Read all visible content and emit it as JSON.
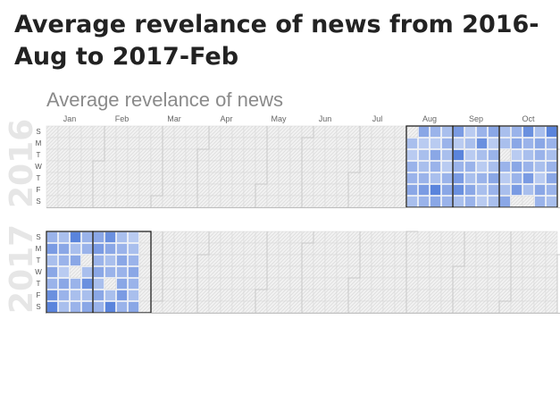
{
  "page": {
    "title": "Average revelance of news from 2016-Aug to 2017-Feb"
  },
  "colors": {
    "empty_cell_fill": "#f2f2f2",
    "empty_cell_hatch": "#dcdcdc",
    "cell_stroke": "#d8d8d8",
    "month_outline_inactive": "#c8c8c8",
    "month_outline_active": "#111111",
    "scale_light": "#e9eefb",
    "scale_dark": "#4a78d8"
  },
  "chart_data": {
    "type": "heatmap",
    "subtype": "calendar",
    "title": "Average revelance of news",
    "months_shown": [
      "Jan",
      "Feb",
      "Mar",
      "Apr",
      "May",
      "Jun",
      "Jul",
      "Aug",
      "Sep",
      "Oct"
    ],
    "day_of_week_labels": [
      "S",
      "M",
      "T",
      "W",
      "T",
      "F",
      "S"
    ],
    "years": [
      {
        "year": "2016",
        "active_months": [
          "Aug",
          "Sep",
          "Oct"
        ],
        "weeks": [
          {
            "week": 31,
            "values": [
              null,
              0.4,
              0.3,
              0.5,
              0.5,
              0.6,
              0.4
            ]
          },
          {
            "week": 32,
            "values": [
              0.6,
              0.3,
              0.4,
              0.4,
              0.5,
              0.7,
              0.5
            ]
          },
          {
            "week": 33,
            "values": [
              0.5,
              0.3,
              0.6,
              0.5,
              0.4,
              0.9,
              0.6
            ]
          },
          {
            "week": 34,
            "values": [
              0.4,
              0.5,
              0.4,
              0.3,
              0.5,
              0.6,
              0.5
            ]
          },
          {
            "week": 35,
            "values": [
              0.7,
              0.3,
              0.9,
              0.5,
              0.7,
              0.8,
              0.4
            ]
          },
          {
            "week": 36,
            "values": [
              0.3,
              0.4,
              0.3,
              0.5,
              0.4,
              0.6,
              0.5
            ]
          },
          {
            "week": 37,
            "values": [
              0.5,
              0.8,
              0.4,
              0.3,
              0.5,
              0.4,
              0.3
            ]
          },
          {
            "week": 38,
            "values": [
              0.6,
              0.3,
              0.5,
              0.4,
              0.6,
              0.5,
              0.4
            ]
          },
          {
            "week": 39,
            "values": [
              0.4,
              0.4,
              null,
              0.5,
              0.3,
              0.4,
              0.6
            ]
          },
          {
            "week": 40,
            "values": [
              0.5,
              0.6,
              0.3,
              0.6,
              0.5,
              0.7,
              null
            ]
          },
          {
            "week": 41,
            "values": [
              0.8,
              0.5,
              0.4,
              0.5,
              0.7,
              0.4,
              null
            ]
          },
          {
            "week": 42,
            "values": [
              0.4,
              0.6,
              0.5,
              0.4,
              0.3,
              0.6,
              0.5
            ]
          },
          {
            "week": 43,
            "values": [
              0.9,
              0.5,
              0.4,
              0.5,
              0.6,
              0.5,
              0.4
            ]
          }
        ]
      },
      {
        "year": "2017",
        "active_months": [
          "Jan",
          "Feb"
        ],
        "weeks": [
          {
            "week": 1,
            "values": [
              0.5,
              0.7,
              0.4,
              0.6,
              0.5,
              0.8,
              0.9
            ]
          },
          {
            "week": 2,
            "values": [
              0.4,
              0.6,
              0.5,
              0.3,
              0.6,
              0.5,
              0.4
            ]
          },
          {
            "week": 3,
            "values": [
              0.9,
              0.4,
              0.6,
              null,
              0.5,
              0.4,
              0.5
            ]
          },
          {
            "week": 4,
            "values": [
              0.5,
              0.5,
              null,
              0.4,
              0.8,
              0.4,
              0.6
            ]
          },
          {
            "week": 5,
            "values": [
              0.6,
              0.7,
              0.5,
              0.6,
              0.4,
              0.6,
              0.5
            ]
          },
          {
            "week": 6,
            "values": [
              0.8,
              0.6,
              0.4,
              0.5,
              null,
              0.4,
              0.9
            ]
          },
          {
            "week": 7,
            "values": [
              0.4,
              0.5,
              0.6,
              0.5,
              0.6,
              0.7,
              0.5
            ]
          },
          {
            "week": 8,
            "values": [
              0.3,
              0.4,
              0.5,
              0.6,
              0.5,
              0.4,
              0.6
            ]
          },
          {
            "week": 9,
            "values": [
              null,
              null,
              null,
              null,
              null,
              null,
              null
            ]
          }
        ]
      }
    ],
    "grid": true,
    "legend": "none"
  }
}
